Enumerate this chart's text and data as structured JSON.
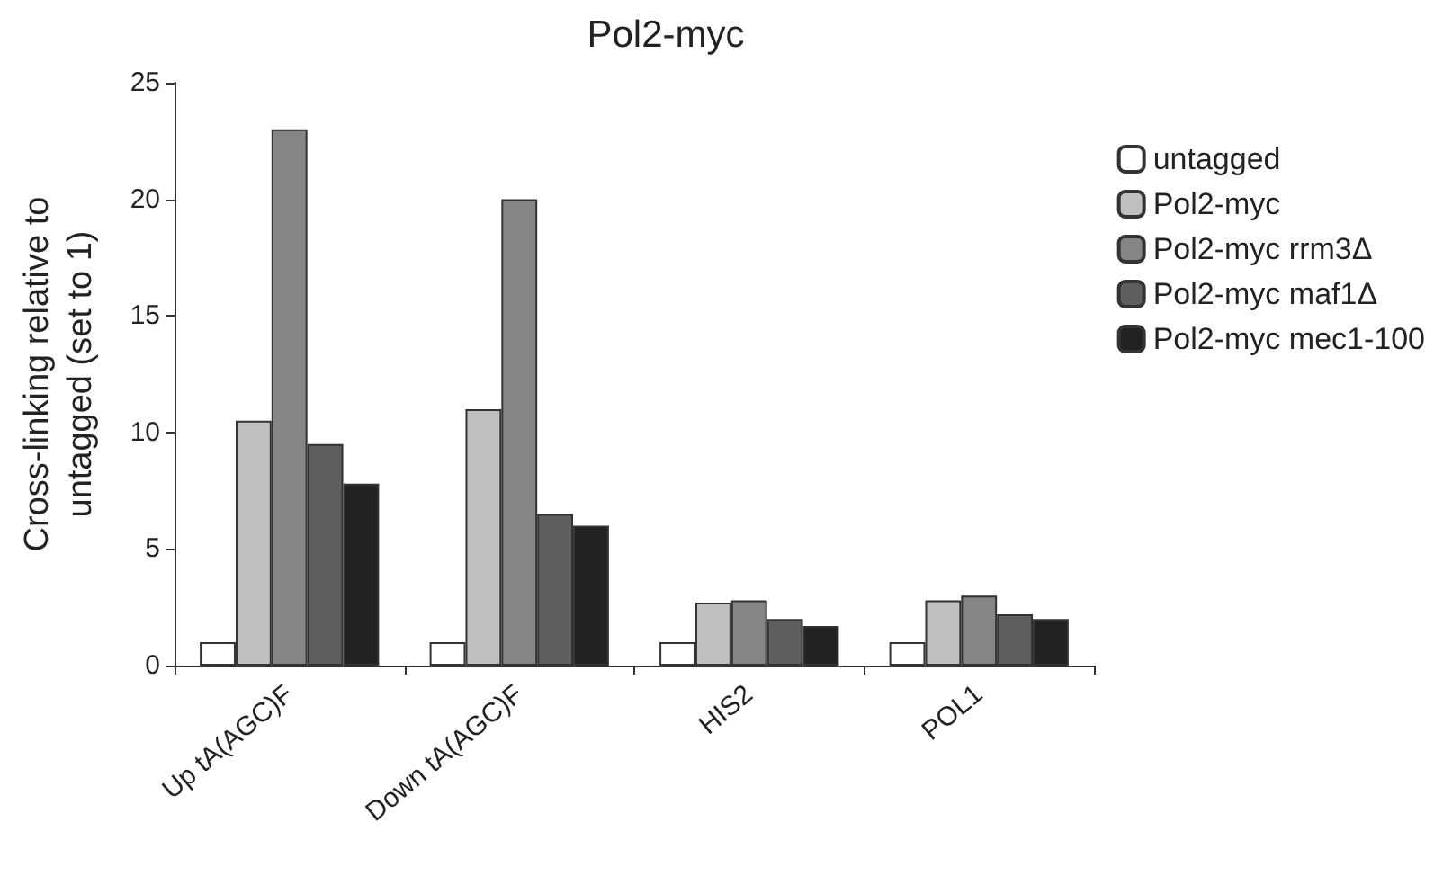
{
  "chart_data": {
    "type": "bar",
    "title": "Pol2-myc",
    "ylabel": "Cross-linking relative to\nuntagged (set to 1)",
    "categories": [
      "Up tA(AGC)F",
      "Down tA(AGC)F",
      "HIS2",
      "POL1"
    ],
    "series": [
      {
        "name": "untagged",
        "color": "#ffffff",
        "values": [
          1,
          1,
          1,
          1
        ]
      },
      {
        "name": "Pol2-myc",
        "color": "#c0c0c0",
        "values": [
          10.5,
          11,
          2.7,
          2.8
        ]
      },
      {
        "name": "Pol2-myc rrm3Δ",
        "color": "#858585",
        "values": [
          23,
          20,
          2.8,
          3.0
        ]
      },
      {
        "name": "Pol2-myc maf1Δ",
        "color": "#5e5e5e",
        "values": [
          9.5,
          6.5,
          2.0,
          2.2
        ]
      },
      {
        "name": "Pol2-myc mec1-100",
        "color": "#222222",
        "values": [
          7.8,
          6,
          1.7,
          2.0
        ]
      }
    ],
    "ylim": [
      0,
      25
    ],
    "yticks": [
      0,
      5,
      10,
      15,
      20,
      25
    ],
    "grid": false,
    "legend": "top right"
  }
}
